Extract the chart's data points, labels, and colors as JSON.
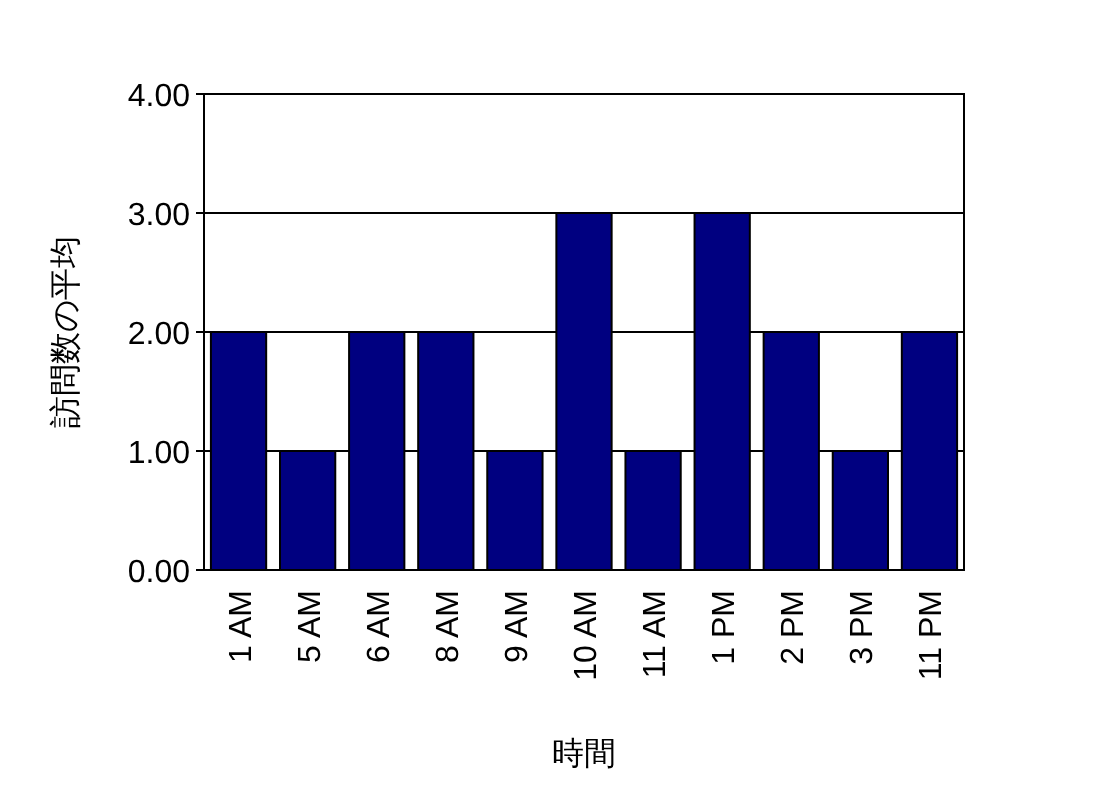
{
  "chart_data": {
    "type": "bar",
    "xlabel": "時間",
    "ylabel": "訪問数の平均",
    "categories": [
      "1 AM",
      "5 AM",
      "6 AM",
      "8 AM",
      "9 AM",
      "10 AM",
      "11 AM",
      "1 PM",
      "2 PM",
      "3 PM",
      "11 PM"
    ],
    "values": [
      2,
      1,
      2,
      2,
      1,
      3,
      1,
      3,
      2,
      1,
      2
    ],
    "color": "#000080",
    "ylim": [
      0,
      4
    ],
    "yticks": [
      {
        "value": 0,
        "label": "0.00"
      },
      {
        "value": 1,
        "label": "1.00"
      },
      {
        "value": 2,
        "label": "2.00"
      },
      {
        "value": 3,
        "label": "3.00"
      },
      {
        "value": 4,
        "label": "4.00"
      }
    ],
    "grid": "y"
  }
}
